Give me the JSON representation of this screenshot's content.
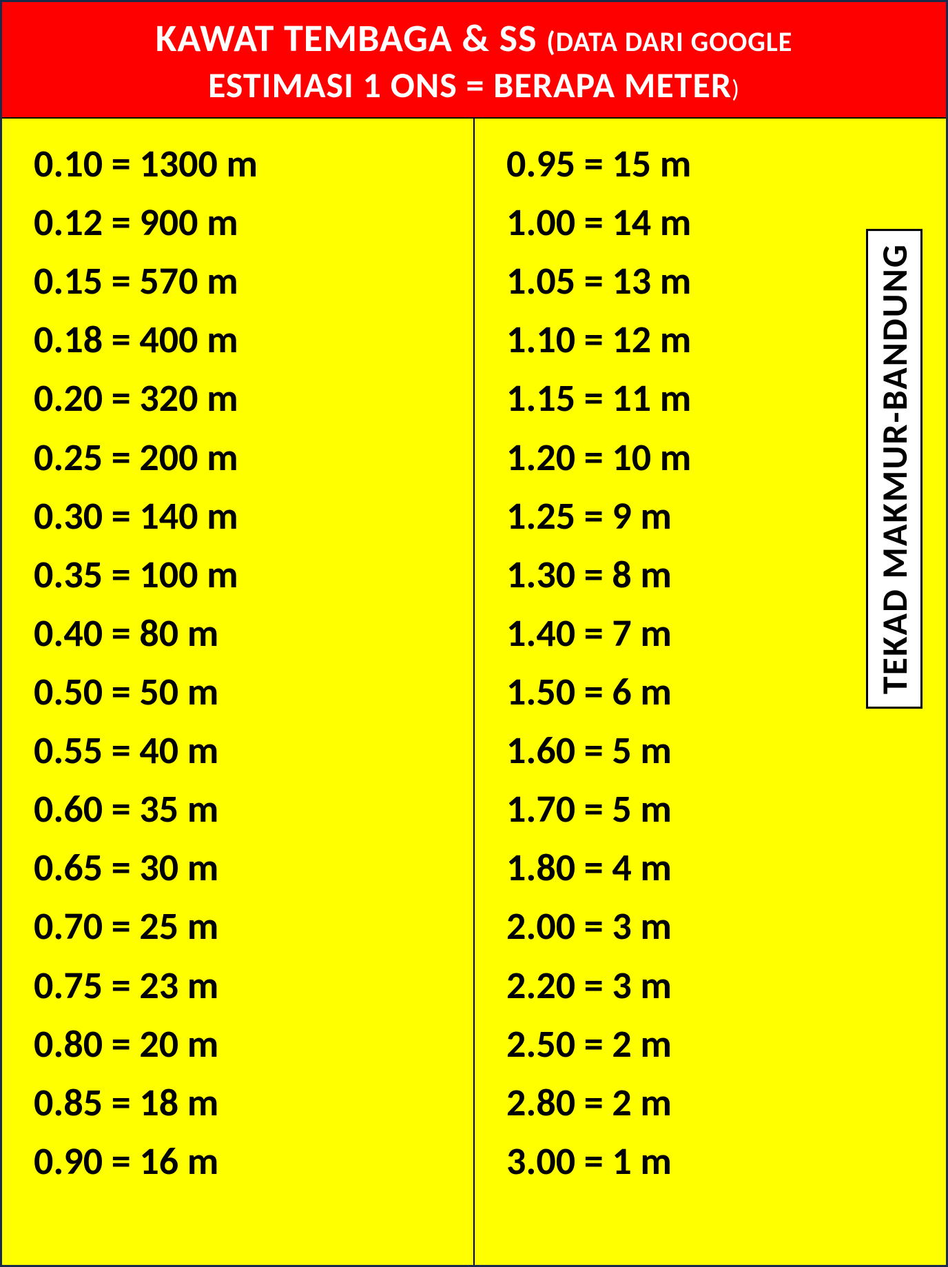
{
  "header": {
    "line1_main": "KAWAT TEMBAGA & SS",
    "line1_sub": "(DATA DARI GOOGLE",
    "line2": "ESTIMASI 1 ONS =  BERAPA METER",
    "line2_close": ")",
    "bg_color": "#ff0000",
    "text_color": "#ffffff"
  },
  "body": {
    "bg_color": "#ffff00",
    "text_color": "#000000",
    "border_color": "#1a2a4a",
    "font_size_pt": 42,
    "font_weight": 700
  },
  "columns": {
    "left": [
      "0.10 = 1300 m",
      "0.12 = 900 m",
      "0.15 = 570 m",
      "0.18 = 400 m",
      "0.20 = 320 m",
      "0.25 = 200 m",
      "0.30 = 140 m",
      "0.35 = 100 m",
      "0.40 = 80 m",
      "0.50 = 50 m",
      "0.55 = 40 m",
      "0.60 = 35 m",
      "0.65 = 30 m",
      "0.70 = 25 m",
      "0.75 = 23 m",
      "0.80 = 20 m",
      "0.85 = 18 m",
      "0.90 = 16 m"
    ],
    "right": [
      "0.95 = 15 m",
      "1.00 = 14 m",
      "1.05 = 13 m",
      "1.10 = 12 m",
      "1.15 = 11 m",
      "1.20 = 10 m",
      "1.25 = 9 m",
      "1.30 = 8 m",
      "1.40 = 7 m",
      "1.50 = 6 m",
      "1.60 = 5 m",
      "1.70 = 5 m",
      "1.80 = 4 m",
      "2.00 = 3 m",
      "2.20 = 3 m",
      "2.50 = 2 m",
      "2.80 = 2 m",
      "3.00 = 1 m"
    ]
  },
  "sidelabel": {
    "text": "TEKAD MAKMUR-BANDUNG",
    "bg_color": "#ffffff",
    "border_color": "#000000"
  }
}
